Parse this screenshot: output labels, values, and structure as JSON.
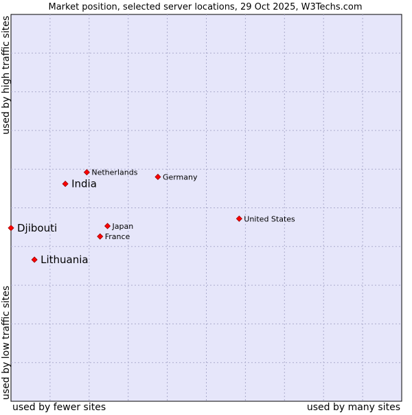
{
  "chart_data": {
    "type": "scatter",
    "title": "Market position, selected server locations, 29 Oct 2025, W3Techs.com",
    "xlabel_left": "used by fewer sites",
    "xlabel_right": "used by many sites",
    "ylabel_bottom": "used by low traffic sites",
    "ylabel_top": "used by high traffic sites",
    "xlim": [
      0,
      10
    ],
    "ylim": [
      0,
      10
    ],
    "grid": true,
    "colors": {
      "plot_background": "#e6e6fa",
      "grid": "#aaaacc",
      "frame": "#000000",
      "marker": "#ff0000",
      "marker_edge": "#990000"
    },
    "points": [
      {
        "label": "Netherlands",
        "x": 1.94,
        "y": 5.92,
        "emphasis": false
      },
      {
        "label": "India",
        "x": 1.39,
        "y": 5.62,
        "emphasis": true
      },
      {
        "label": "Germany",
        "x": 3.76,
        "y": 5.8,
        "emphasis": false
      },
      {
        "label": "United States",
        "x": 5.84,
        "y": 4.72,
        "emphasis": false
      },
      {
        "label": "Djibouti",
        "x": 0.0,
        "y": 4.48,
        "emphasis": true
      },
      {
        "label": "Japan",
        "x": 2.47,
        "y": 4.53,
        "emphasis": false
      },
      {
        "label": "France",
        "x": 2.28,
        "y": 4.26,
        "emphasis": false
      },
      {
        "label": "Lithuania",
        "x": 0.6,
        "y": 3.66,
        "emphasis": true
      }
    ]
  }
}
